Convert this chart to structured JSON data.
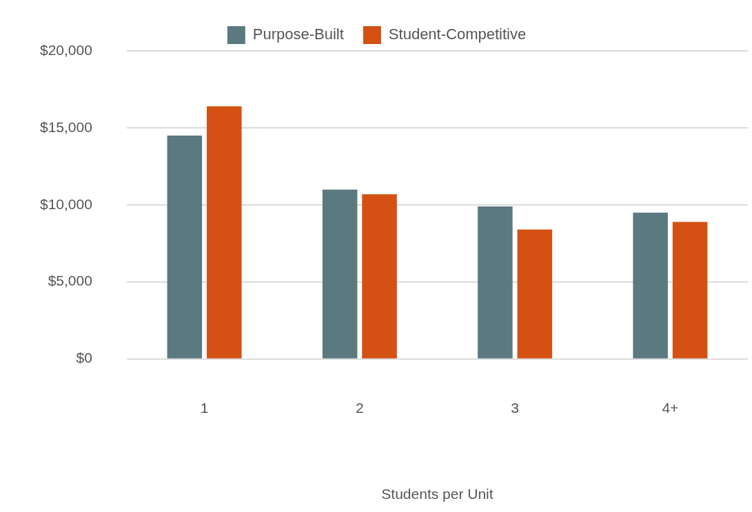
{
  "chart_data": {
    "type": "bar",
    "xlabel": "Students per Unit",
    "categories": [
      "1",
      "2",
      "3",
      "4+"
    ],
    "series": [
      {
        "name": "Purpose-Built",
        "color": "#5a7a80",
        "values": [
          14500,
          11000,
          9900,
          9500
        ]
      },
      {
        "name": "Student-Competitive",
        "color": "#d45113",
        "values": [
          16400,
          10700,
          8400,
          8900
        ]
      }
    ],
    "ylim": [
      0,
      20000
    ],
    "yticks": [
      {
        "value": 0,
        "label": "$0"
      },
      {
        "value": 5000,
        "label": "$5,000"
      },
      {
        "value": 10000,
        "label": "$10,000"
      },
      {
        "value": 15000,
        "label": "$15,000"
      },
      {
        "value": 20000,
        "label": "$20,000"
      }
    ],
    "grid": "y",
    "legend": "top"
  }
}
